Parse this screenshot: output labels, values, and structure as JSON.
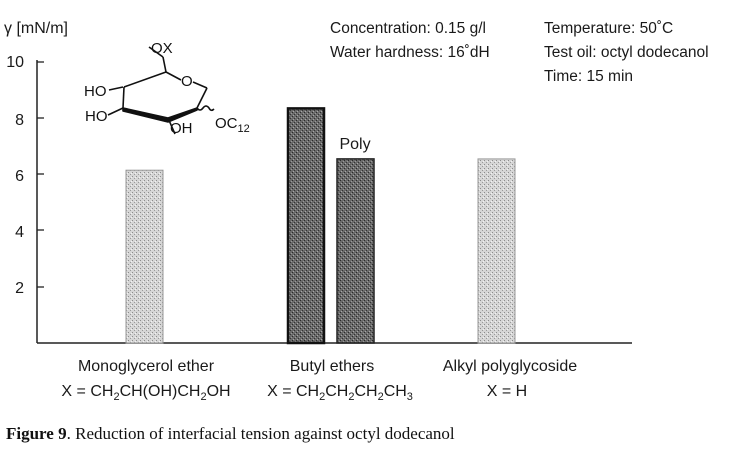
{
  "chart_data": {
    "type": "bar",
    "ylabel": "γ [mN/m]",
    "ylim": [
      0,
      10
    ],
    "yticks": [
      "2",
      "4",
      "6",
      "8",
      "10"
    ],
    "conditions": [
      "Concentration: 0.15 g/l",
      "Water hardness: 16˚dH",
      "Temperature: 50˚C",
      "Test oil: octyl dodecanol",
      "Time: 15 min"
    ],
    "categories": [
      {
        "name": "Monoglycerol ether",
        "formula": [
          "X = CH",
          "2",
          "CH(OH)CH",
          "2",
          "OH"
        ]
      },
      {
        "name": "Butyl ethers",
        "formula": [
          "X = CH",
          "2",
          "CH",
          "2",
          "CH",
          "2",
          "CH",
          "3"
        ]
      },
      {
        "name": "Alkyl polyglycoside",
        "formula": [
          "X = H"
        ]
      }
    ],
    "bars": [
      {
        "category": 0,
        "value": 6.15,
        "shade": "light",
        "label": ""
      },
      {
        "category": 1,
        "value": 8.35,
        "shade": "dark",
        "label": ""
      },
      {
        "category": 1,
        "value": 6.55,
        "shade": "dark",
        "label": "Poly"
      },
      {
        "category": 2,
        "value": 6.55,
        "shade": "light",
        "label": ""
      }
    ],
    "colors": {
      "light": "#c9c9c9",
      "dark": "#5a5a5a",
      "axis": "#222222"
    }
  },
  "structure": {
    "substituents": [
      "OX",
      "O",
      "HO",
      "HO",
      "OH",
      "OC",
      "12"
    ]
  },
  "caption": {
    "label": "Figure 9",
    "text": ". Reduction of interfacial tension against octyl dodecanol"
  }
}
